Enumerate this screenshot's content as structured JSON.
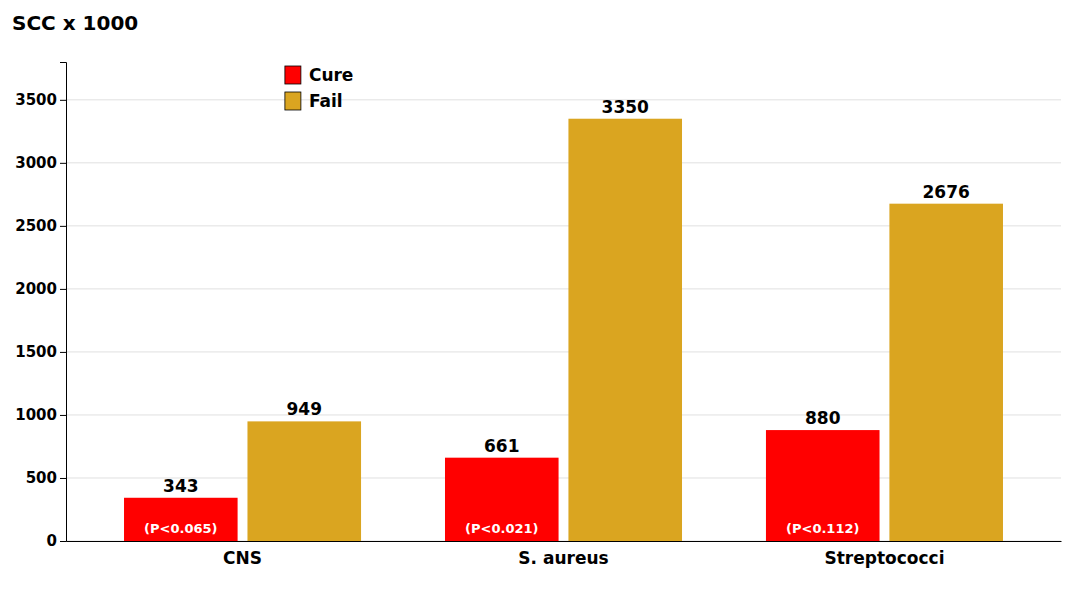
{
  "chart_data": {
    "type": "bar",
    "title": "SCC x 1000",
    "categories": [
      "CNS",
      "S. aureus",
      "Streptococci"
    ],
    "series": [
      {
        "name": "Cure",
        "color": "#FF0000",
        "values": [
          343,
          661,
          880
        ]
      },
      {
        "name": "Fail",
        "color": "#DAA520",
        "values": [
          949,
          3350,
          2676
        ]
      }
    ],
    "annotations": [
      "(P<0.065)",
      "(P<0.021)",
      "(P<0.112)"
    ],
    "ylim": [
      0,
      3800
    ],
    "yticks": [
      0,
      500,
      1000,
      1500,
      2000,
      2500,
      3000,
      3500
    ],
    "grid": true,
    "legend": "upper left",
    "data_labels": true
  }
}
